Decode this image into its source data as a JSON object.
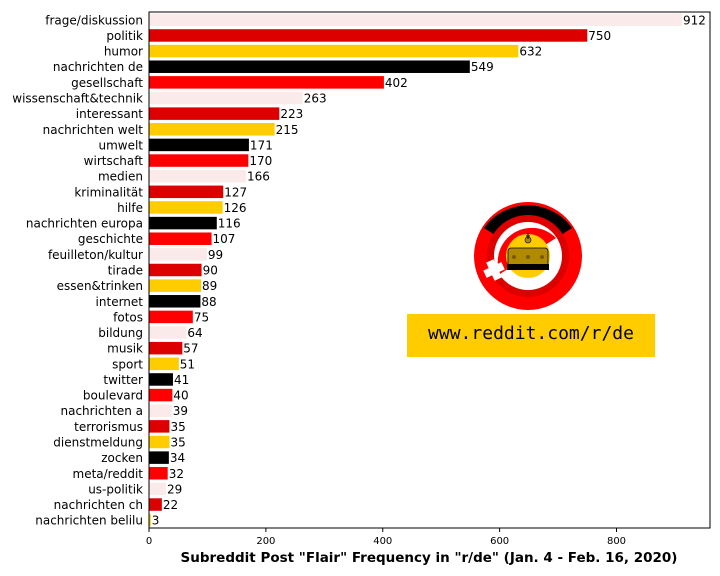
{
  "chart_data": {
    "type": "bar",
    "orientation": "horizontal",
    "categories": [
      "frage/diskussion",
      "politik",
      "humor",
      "nachrichten de",
      "gesellschaft",
      "wissenschaft&technik",
      "interessant",
      "nachrichten welt",
      "umwelt",
      "wirtschaft",
      "medien",
      "kriminalität",
      "hilfe",
      "nachrichten europa",
      "geschichte",
      "feuilleton/kultur",
      "tirade",
      "essen&trinken",
      "internet",
      "fotos",
      "bildung",
      "musik",
      "sport",
      "twitter",
      "boulevard",
      "nachrichten a",
      "terrorismus",
      "dienstmeldung",
      "zocken",
      "meta/reddit",
      "us-politik",
      "nachrichten ch",
      "nachrichten belilu"
    ],
    "values": [
      912,
      750,
      632,
      549,
      402,
      263,
      223,
      215,
      171,
      170,
      166,
      127,
      126,
      116,
      107,
      99,
      90,
      89,
      88,
      75,
      64,
      57,
      51,
      41,
      40,
      39,
      35,
      35,
      34,
      32,
      29,
      22,
      3
    ],
    "bar_colors": [
      "#fbeaea",
      "#dd0000",
      "#ffcc00",
      "#000000",
      "#ff0000"
    ],
    "title": "",
    "xlabel": "Subreddit Post \"Flair\" Frequency in \"r/de\" (Jan. 4 - Feb. 16, 2020)",
    "ylabel": "",
    "xlim": [
      0,
      960
    ],
    "xticks": [
      0,
      200,
      400,
      600,
      800
    ],
    "grid": false
  },
  "logo": {
    "url_text": "www.reddit.com/r/de",
    "colors": {
      "black": "#000000",
      "red": "#ff0000",
      "gold": "#ffcc00"
    }
  }
}
